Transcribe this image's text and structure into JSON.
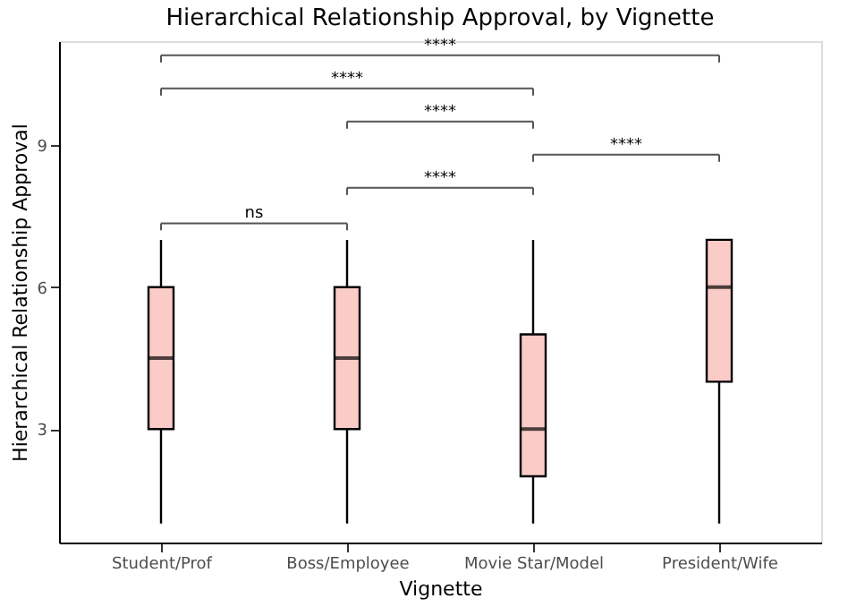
{
  "chart_data": {
    "type": "box",
    "title": "Hierarchical Relationship Approval, by Vignette",
    "xlabel": "Vignette",
    "ylabel": "Hierarchical Relationship Approval",
    "categories": [
      "Student/Prof",
      "Boss/Employee",
      "Movie Star/Model",
      "President/Wife"
    ],
    "boxes": [
      {
        "low": 1,
        "q1": 3,
        "median": 4.5,
        "q3": 6,
        "high": 7
      },
      {
        "low": 1,
        "q1": 3,
        "median": 4.5,
        "q3": 6,
        "high": 7
      },
      {
        "low": 1,
        "q1": 2,
        "median": 3,
        "q3": 5,
        "high": 7
      },
      {
        "low": 1,
        "q1": 4,
        "median": 6,
        "q3": 7,
        "high": 7
      }
    ],
    "color": "#fbcbc7",
    "ylim": [
      0.6,
      11.2
    ],
    "yticks": [
      3,
      6,
      9
    ],
    "grid": false,
    "annotations": [
      "ns",
      "****",
      "****",
      "****",
      "****",
      "****"
    ]
  }
}
